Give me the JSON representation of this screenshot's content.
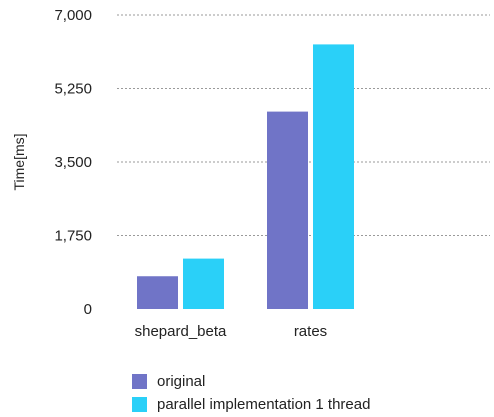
{
  "chart_data": {
    "type": "bar",
    "ylabel": "Time[ms]",
    "ylim": [
      0,
      7000
    ],
    "yticks": [
      "0",
      "1,750",
      "3,500",
      "5,250",
      "7,000"
    ],
    "ytick_values": [
      0,
      1750,
      3500,
      5250,
      7000
    ],
    "categories": [
      "shepard_beta",
      "rates"
    ],
    "series": [
      {
        "name": "original",
        "color": "#7074c7",
        "values": [
          780,
          4700
        ]
      },
      {
        "name": "parallel implementation 1 thread",
        "color": "#2ad0f8",
        "values": [
          1200,
          6300
        ]
      }
    ],
    "grid": true,
    "legend_position": "bottom"
  }
}
